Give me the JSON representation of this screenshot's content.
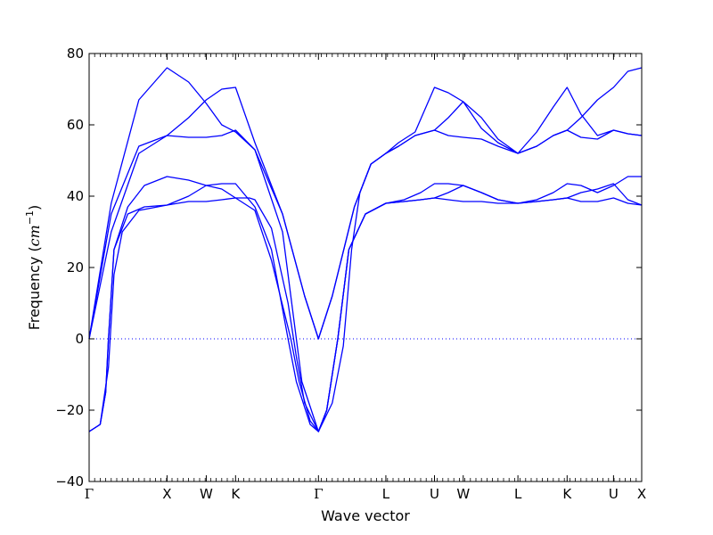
{
  "chart_data": {
    "type": "line",
    "xlabel": "Wave vector",
    "ylabel_main": "Frequency (",
    "ylabel_unit": "cm",
    "ylabel_exp": "−1",
    "ylabel_close": ")",
    "ylim": [
      -40,
      80
    ],
    "yticks": [
      -40,
      -20,
      0,
      20,
      40,
      60,
      80
    ],
    "yticks_labels": [
      "−40",
      "−20",
      "0",
      "20",
      "40",
      "60",
      "80"
    ],
    "xlim": [
      0,
      1
    ],
    "high_symmetry_points": [
      {
        "label": "Γ",
        "x": 0.0
      },
      {
        "label": "X",
        "x": 0.141
      },
      {
        "label": "W",
        "x": 0.212
      },
      {
        "label": "K",
        "x": 0.265
      },
      {
        "label": "Γ",
        "x": 0.415
      },
      {
        "label": "L",
        "x": 0.537
      },
      {
        "label": "U",
        "x": 0.625
      },
      {
        "label": "W",
        "x": 0.677
      },
      {
        "label": "L",
        "x": 0.776
      },
      {
        "label": "K",
        "x": 0.865
      },
      {
        "label": "U",
        "x": 0.949
      },
      {
        "label": "X",
        "x": 1.0
      }
    ],
    "zero_line": {
      "y": 0,
      "style": "dotted"
    },
    "line_color": "#0000ff",
    "series": [
      {
        "points": [
          [
            0,
            0
          ],
          [
            0.04,
            38
          ],
          [
            0.09,
            67
          ],
          [
            0.141,
            76
          ],
          [
            0.18,
            72
          ],
          [
            0.212,
            66
          ],
          [
            0.24,
            60
          ],
          [
            0.265,
            58
          ],
          [
            0.3,
            53
          ],
          [
            0.35,
            35
          ],
          [
            0.39,
            12
          ],
          [
            0.415,
            0
          ],
          [
            0.44,
            12
          ],
          [
            0.48,
            37
          ],
          [
            0.51,
            49
          ],
          [
            0.537,
            52
          ],
          [
            0.56,
            55
          ],
          [
            0.59,
            58
          ],
          [
            0.625,
            70.5
          ],
          [
            0.65,
            69
          ],
          [
            0.677,
            66.5
          ],
          [
            0.71,
            59
          ],
          [
            0.74,
            55
          ],
          [
            0.776,
            52
          ],
          [
            0.81,
            58
          ],
          [
            0.84,
            65
          ],
          [
            0.865,
            70.5
          ],
          [
            0.89,
            63
          ],
          [
            0.92,
            57
          ],
          [
            0.949,
            58.5
          ],
          [
            0.975,
            57.5
          ],
          [
            1.0,
            57
          ]
        ]
      },
      {
        "points": [
          [
            0,
            0
          ],
          [
            0.04,
            35
          ],
          [
            0.09,
            54
          ],
          [
            0.141,
            57
          ],
          [
            0.18,
            62
          ],
          [
            0.212,
            67
          ],
          [
            0.24,
            70
          ],
          [
            0.265,
            70.5
          ],
          [
            0.3,
            55
          ],
          [
            0.35,
            35
          ],
          [
            0.39,
            12
          ],
          [
            0.415,
            0
          ],
          [
            0.44,
            12
          ],
          [
            0.48,
            37
          ],
          [
            0.51,
            49
          ],
          [
            0.537,
            52
          ],
          [
            0.56,
            54
          ],
          [
            0.59,
            57
          ],
          [
            0.625,
            58.5
          ],
          [
            0.65,
            62
          ],
          [
            0.677,
            66.5
          ],
          [
            0.71,
            62
          ],
          [
            0.74,
            56
          ],
          [
            0.776,
            52
          ],
          [
            0.81,
            54
          ],
          [
            0.84,
            57
          ],
          [
            0.865,
            58.5
          ],
          [
            0.89,
            62
          ],
          [
            0.92,
            67
          ],
          [
            0.949,
            70.5
          ],
          [
            0.975,
            75
          ],
          [
            1.0,
            76
          ]
        ]
      },
      {
        "points": [
          [
            0,
            0
          ],
          [
            0.04,
            30
          ],
          [
            0.09,
            52
          ],
          [
            0.141,
            57
          ],
          [
            0.18,
            56.5
          ],
          [
            0.212,
            56.5
          ],
          [
            0.24,
            57
          ],
          [
            0.265,
            58.5
          ],
          [
            0.3,
            53
          ],
          [
            0.35,
            30
          ],
          [
            0.385,
            -12
          ],
          [
            0.415,
            -26
          ],
          [
            0.44,
            -18
          ],
          [
            0.46,
            -2
          ],
          [
            0.475,
            25
          ],
          [
            0.49,
            41
          ],
          [
            0.51,
            49
          ],
          [
            0.537,
            52
          ],
          [
            0.56,
            54
          ],
          [
            0.59,
            57
          ],
          [
            0.625,
            58.5
          ],
          [
            0.65,
            57
          ],
          [
            0.677,
            56.5
          ],
          [
            0.71,
            56
          ],
          [
            0.74,
            54
          ],
          [
            0.776,
            52
          ],
          [
            0.81,
            54
          ],
          [
            0.84,
            57
          ],
          [
            0.865,
            58.5
          ],
          [
            0.89,
            56.5
          ],
          [
            0.92,
            56
          ],
          [
            0.949,
            58.5
          ],
          [
            0.975,
            57.5
          ],
          [
            1.0,
            57
          ]
        ]
      },
      {
        "points": [
          [
            0,
            -26
          ],
          [
            0.02,
            -24
          ],
          [
            0.03,
            -15
          ],
          [
            0.035,
            0
          ],
          [
            0.045,
            25
          ],
          [
            0.07,
            37
          ],
          [
            0.1,
            43
          ],
          [
            0.141,
            45.5
          ],
          [
            0.18,
            44.5
          ],
          [
            0.212,
            43
          ],
          [
            0.24,
            42
          ],
          [
            0.265,
            39.5
          ],
          [
            0.3,
            36
          ],
          [
            0.33,
            22
          ],
          [
            0.365,
            0
          ],
          [
            0.38,
            -12
          ],
          [
            0.4,
            -23
          ],
          [
            0.415,
            -26
          ],
          [
            0.43,
            -20
          ],
          [
            0.45,
            0
          ],
          [
            0.47,
            25
          ],
          [
            0.5,
            35
          ],
          [
            0.537,
            38
          ],
          [
            0.57,
            39
          ],
          [
            0.6,
            41
          ],
          [
            0.625,
            43.5
          ],
          [
            0.65,
            43.5
          ],
          [
            0.677,
            43
          ],
          [
            0.71,
            41
          ],
          [
            0.74,
            39
          ],
          [
            0.776,
            38
          ],
          [
            0.81,
            39
          ],
          [
            0.84,
            41
          ],
          [
            0.865,
            43.5
          ],
          [
            0.89,
            43
          ],
          [
            0.92,
            41
          ],
          [
            0.949,
            43
          ],
          [
            0.975,
            45.5
          ],
          [
            1.0,
            45.5
          ]
        ]
      },
      {
        "points": [
          [
            0,
            -26
          ],
          [
            0.02,
            -24
          ],
          [
            0.03,
            -15
          ],
          [
            0.035,
            0
          ],
          [
            0.045,
            25
          ],
          [
            0.07,
            35
          ],
          [
            0.1,
            37
          ],
          [
            0.141,
            37.5
          ],
          [
            0.18,
            40
          ],
          [
            0.212,
            43
          ],
          [
            0.24,
            43.5
          ],
          [
            0.265,
            43.5
          ],
          [
            0.3,
            37
          ],
          [
            0.33,
            25
          ],
          [
            0.36,
            0
          ],
          [
            0.375,
            -12
          ],
          [
            0.4,
            -24
          ],
          [
            0.415,
            -26
          ],
          [
            0.43,
            -20
          ],
          [
            0.45,
            0
          ],
          [
            0.47,
            25
          ],
          [
            0.5,
            35
          ],
          [
            0.537,
            38
          ],
          [
            0.57,
            38.5
          ],
          [
            0.6,
            39
          ],
          [
            0.625,
            39.5
          ],
          [
            0.65,
            41
          ],
          [
            0.677,
            43
          ],
          [
            0.71,
            41
          ],
          [
            0.74,
            39
          ],
          [
            0.776,
            38
          ],
          [
            0.81,
            38.5
          ],
          [
            0.84,
            39
          ],
          [
            0.865,
            39.5
          ],
          [
            0.89,
            38.5
          ],
          [
            0.92,
            38.5
          ],
          [
            0.949,
            39.5
          ],
          [
            0.975,
            38
          ],
          [
            1.0,
            37.5
          ]
        ]
      },
      {
        "points": [
          [
            0,
            -26
          ],
          [
            0.02,
            -24
          ],
          [
            0.035,
            -8
          ],
          [
            0.045,
            18
          ],
          [
            0.06,
            30
          ],
          [
            0.09,
            36
          ],
          [
            0.141,
            37.5
          ],
          [
            0.18,
            38.5
          ],
          [
            0.212,
            38.5
          ],
          [
            0.24,
            39
          ],
          [
            0.265,
            39.5
          ],
          [
            0.29,
            39.5
          ],
          [
            0.3,
            39
          ],
          [
            0.33,
            31
          ],
          [
            0.36,
            10
          ],
          [
            0.375,
            -5
          ],
          [
            0.39,
            -18
          ],
          [
            0.415,
            -26
          ],
          [
            0.43,
            -20
          ],
          [
            0.45,
            0
          ],
          [
            0.47,
            25
          ],
          [
            0.5,
            35
          ],
          [
            0.537,
            38
          ],
          [
            0.57,
            38.5
          ],
          [
            0.6,
            39
          ],
          [
            0.625,
            39.5
          ],
          [
            0.65,
            39
          ],
          [
            0.677,
            38.5
          ],
          [
            0.71,
            38.5
          ],
          [
            0.74,
            38
          ],
          [
            0.776,
            38
          ],
          [
            0.81,
            38.5
          ],
          [
            0.84,
            39
          ],
          [
            0.865,
            39.5
          ],
          [
            0.89,
            41
          ],
          [
            0.92,
            42
          ],
          [
            0.949,
            43.5
          ],
          [
            0.975,
            39
          ],
          [
            1.0,
            37.5
          ]
        ]
      }
    ]
  }
}
